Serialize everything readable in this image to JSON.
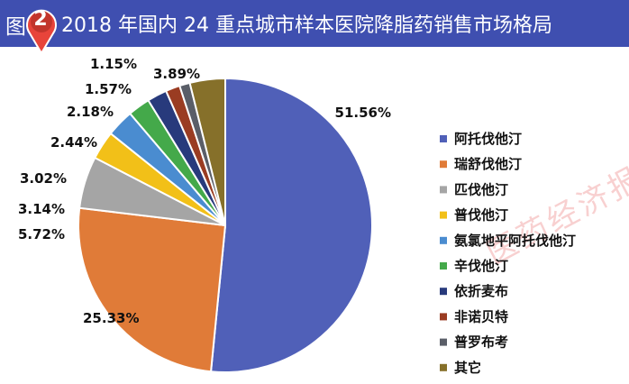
{
  "figure": {
    "label": "图",
    "number": "2",
    "title": "2018 年国内 24 重点城市样本医院降脂药销售市场格局"
  },
  "watermark_text": "医药经济报",
  "chart_data": {
    "type": "pie",
    "unit": "%",
    "legend_position": "right",
    "slices": [
      {
        "name": "阿托伐他汀",
        "value": 51.56,
        "label": "51.56%",
        "color": "#5060b8"
      },
      {
        "name": "瑞舒伐他汀",
        "value": 25.33,
        "label": "25.33%",
        "color": "#e07b38"
      },
      {
        "name": "匹伐他汀",
        "value": 5.72,
        "label": "5.72%",
        "color": "#a5a5a5"
      },
      {
        "name": "普伐他汀",
        "value": 3.14,
        "label": "3.14%",
        "color": "#f2c018"
      },
      {
        "name": "氨氯地平阿托伐他汀",
        "value": 3.02,
        "label": "3.02%",
        "color": "#4a8cd0"
      },
      {
        "name": "辛伐他汀",
        "value": 2.44,
        "label": "2.44%",
        "color": "#44a94a"
      },
      {
        "name": "依折麦布",
        "value": 2.18,
        "label": "2.18%",
        "color": "#283a7c"
      },
      {
        "name": "非诺贝特",
        "value": 1.57,
        "label": "1.57%",
        "color": "#9a3c22"
      },
      {
        "name": "普罗布考",
        "value": 1.15,
        "label": "1.15%",
        "color": "#5a5e68"
      },
      {
        "name": "其它",
        "value": 3.89,
        "label": "3.89%",
        "color": "#86702a"
      }
    ]
  }
}
